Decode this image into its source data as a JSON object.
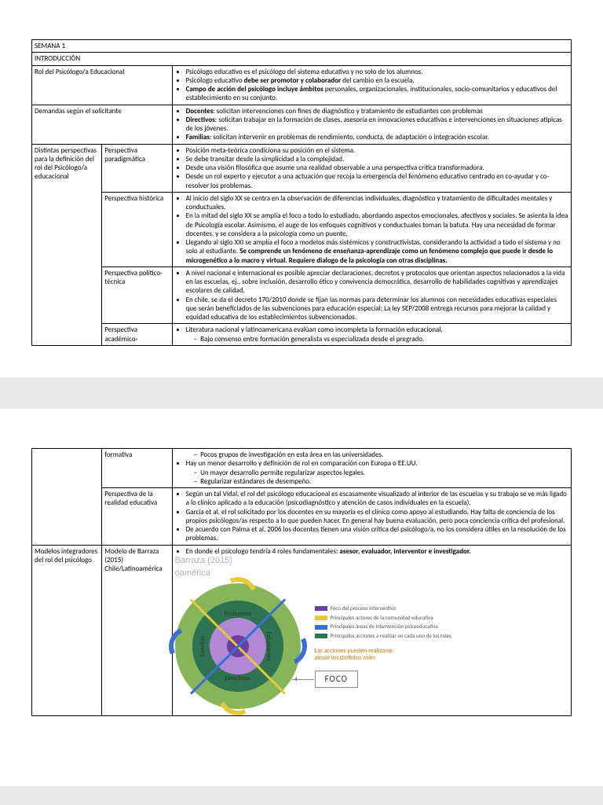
{
  "header": {
    "semana": "SEMANA 1",
    "section": "INTRODUCCIÓN"
  },
  "rows1": {
    "rol": {
      "label": "Rol del Psicólogo/a Educacional",
      "items": [
        {
          "t": "Psicólogo educativo es el psicólogo del sistema educativo y no solo de los alumnos."
        },
        {
          "t": "Psicólogo educativo ",
          "b": "debe ser promotor y colaborador",
          "t2": " del cambio en la escuela."
        },
        {
          "b": "Campo de acción del psicólogo incluye ámbitos ",
          "t2": "personales, organizacionales, institucionales, socio-comunitarios y educativos del establecimiento en su conjunto."
        }
      ]
    },
    "demandas": {
      "label": "Demandas según el solicitante",
      "items": [
        {
          "b": "Docentes",
          "t2": ": solicitan intervenciones con fines de diagnóstico y tratamiento de estudiantes con problemas"
        },
        {
          "b": "Directivos",
          "t2": ": solicitan trabajar en la formación de clases, asesoría en innovaciones educativas e intervenciones en situaciones atípicas de los jóvenes."
        },
        {
          "b": "Familias",
          "t2": ": solicitan intervenir en problemas de rendimiento, conducta, de adaptación o integración escolar."
        }
      ]
    },
    "distintas": {
      "label": "Distintas perspectivas para la definición del rol del Psicólogo/a educacional",
      "persp": [
        {
          "name": "Perspectiva paradigmática",
          "items": [
            {
              "t": "Posición meta-teórica condiciona su posición en el sistema."
            },
            {
              "t": "Se debe transitar desde la simplicidad a la complejidad."
            },
            {
              "t": "Desde una visión filosófica que asume una realidad observable a una perspectiva crítica transformadora."
            },
            {
              "t": "Desde un rol experto y ejecutor a una actuación que recoja la emergencia del fenómeno educativo centrado en co-ayudar y co-resolver los problemas."
            }
          ]
        },
        {
          "name": "Perspectiva histórica",
          "items": [
            {
              "t": "Al inicio del siglo XX se centra en la observación de diferencias individuales, diagnóstico y tratamiento de dificultades mentales y conductuales."
            },
            {
              "t": "En la mitad del siglo XX se amplía el foco a todo lo estudiado, abordando aspectos emocionales, afectivos y sociales. Se asienta la idea de Psicología escolar. Asimismo, el auge de los enfoques cognitivos y conductuales toman la batuta. Hay una necesidad de formar docentes, y se considera a la psicología como un puente."
            },
            {
              "t": "Llegando al siglo XXI se amplía el foco a modelos más sistémicos y constructivistas, considerando la actividad a todo el sistema y no solo al estudiante. ",
              "b": "Se comprende un fenómeno de enseñanza-aprendizaje como un fenómeno complejo que puede ir desde lo microgenético a lo macro y virtual. Requiere dialogo de la psicología con otras disciplinas."
            }
          ]
        },
        {
          "name": "Perspectiva político-técnica",
          "items": [
            {
              "t": "A nivel nacional e internacional es posible apreciar declaraciones, decretos y protocolos que orientan aspectos relacionados a la vida en las escuelas, ej., sobre inclusión, desarrollo ético y convivencia democrática, desarrollo de habilidades cognitivas y aprendizajes escolares de calidad."
            },
            {
              "t": "En chile, se da el decreto 170/2010 donde se fijan las normas para determinar los alumnos con necesidades educativas especiales que serán beneficiados de las subvenciones para educación especial; La ley SEP/2008 entrega recursos para mejorar la calidad y equidad educativa de los establecimientos subvencionados."
            }
          ]
        },
        {
          "name": "Perspectiva académico-",
          "items": [
            {
              "t": "Literatura nacional y latinoamericana evalúan como incompleta la formación educacional."
            },
            {
              "sub": true,
              "t": "Bajo consenso entre formación generalista vs especializada desde el pregrado."
            }
          ]
        }
      ]
    }
  },
  "rows2": {
    "formativa": {
      "name": "formativa",
      "items": [
        {
          "sub": true,
          "t": "Pocos grupos de investigación en esta área en las universidades."
        },
        {
          "t": "Hay un menor desarrollo y definición de rol en comparación con Europa o EE.UU."
        },
        {
          "sub": true,
          "t": "Un mayor desarrollo permite regularizar aspectos legales."
        },
        {
          "sub": true,
          "t": "Regularizar estándares de desempeño."
        }
      ]
    },
    "realidad": {
      "name": "Perspectiva de la realidad educativa",
      "items": [
        {
          "t": "Según un tal Vidal, el rol del psicólogo educacional es escasamente visualizado al interior de las escuelas y su trabajo se ve más ligado a lo clínico aplicado a la educación (psicodiagnóstico y atención de casos individuales en la escuela)."
        },
        {
          "t": "García et al, el rol solicitado por los docentes en su mayoría es el clínico como apoyo al estudiando. Hay falta de conciencia de los propios psicólogos/as respecto a lo que pueden hacer. En general hay buena evaluación, pero poca conciencia crítica del profesional."
        },
        {
          "t": "De acuerdo con Palma et al, 2006 los docentes tienen una visión crítica del psicólogo/a, no los considera útiles en la resolución de los problemas."
        }
      ]
    },
    "modelos": {
      "label": "Modelos integradores del rol del psicólogo",
      "modelo": {
        "name": "Modelo de Barraza (2015) Chile/Latinoamérica",
        "intro": "En donde el psicologo tendría 4 roles fundamentales: ",
        "introb": "asesor, evaluador, interventor e investigador."
      }
    }
  },
  "diagram": {
    "model_line1": "Barraza (2015)",
    "model_line2": "oamérica",
    "wheel_labels": {
      "top": "Profesores",
      "bottom": "Directivos",
      "left": "Familias",
      "right": "Estudiantes"
    },
    "legend": [
      {
        "color": "#6b3fa0",
        "label": "Foco del proceso interventivo"
      },
      {
        "color": "#e6c93a",
        "label": "Principales actores de la comunidad educativa"
      },
      {
        "color": "#3b6fd6",
        "label": "Principales áreas de intervención psicoeducativa"
      },
      {
        "color": "#2e7450",
        "label": "Principales acciones a realizar en cada uno de los roles"
      }
    ],
    "note": "Las acciones pueden realizarse desde los distintos roles",
    "foco": "FOCO"
  }
}
